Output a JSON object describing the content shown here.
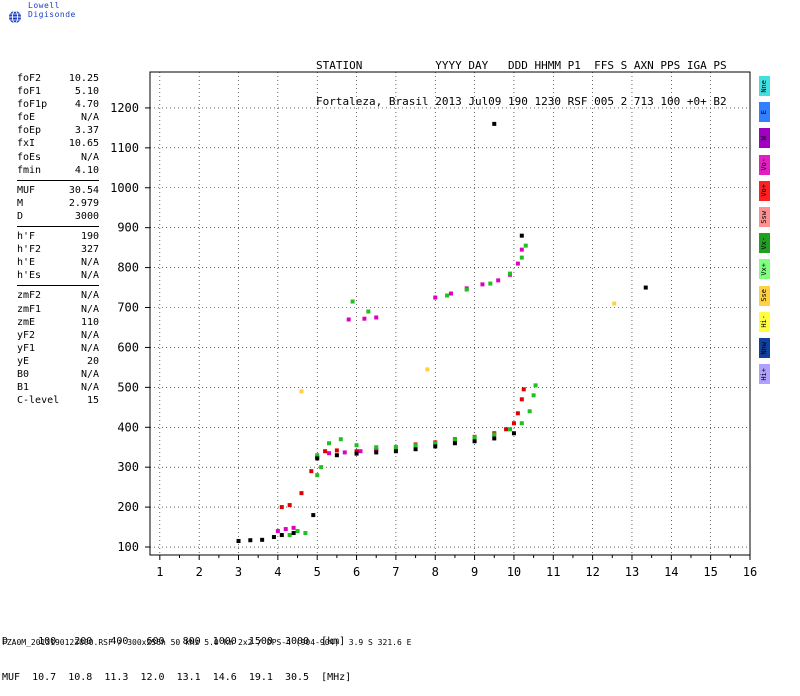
{
  "brand": {
    "name": "Lowell Digisonde",
    "logo_icon": "globe-icon"
  },
  "header": {
    "line1": "STATION           YYYY DAY   DDD HHMM P1  FFS S AXN PPS IGA PS",
    "line2": "Fortaleza, Brasil 2013 Jul09 190 1230 RSF 005 2 713 100 +0+ B2"
  },
  "params": {
    "group1": [
      {
        "k": "foF2",
        "v": "10.25"
      },
      {
        "k": "foF1",
        "v": "5.10"
      },
      {
        "k": "foF1p",
        "v": "4.70"
      },
      {
        "k": "foE",
        "v": "N/A"
      },
      {
        "k": "foEp",
        "v": "3.37"
      },
      {
        "k": "fxI",
        "v": "10.65"
      },
      {
        "k": "foEs",
        "v": "N/A"
      },
      {
        "k": "fmin",
        "v": "4.10"
      }
    ],
    "group2": [
      {
        "k": "MUF",
        "v": "30.54"
      },
      {
        "k": "M",
        "v": "2.979"
      },
      {
        "k": "D",
        "v": "3000"
      }
    ],
    "group3": [
      {
        "k": "h'F",
        "v": "190"
      },
      {
        "k": "h'F2",
        "v": "327"
      },
      {
        "k": "h'E",
        "v": "N/A"
      },
      {
        "k": "h'Es",
        "v": "N/A"
      }
    ],
    "group4": [
      {
        "k": "zmF2",
        "v": "N/A"
      },
      {
        "k": "zmF1",
        "v": "N/A"
      },
      {
        "k": "zmE",
        "v": "110"
      },
      {
        "k": "yF2",
        "v": "N/A"
      },
      {
        "k": "yF1",
        "v": "N/A"
      },
      {
        "k": "yE",
        "v": "20"
      },
      {
        "k": "B0",
        "v": "N/A"
      },
      {
        "k": "B1",
        "v": "N/A"
      },
      {
        "k": "C-level",
        "v": "15"
      }
    ]
  },
  "legend": [
    {
      "label": "Nne",
      "color": "#40e0e0"
    },
    {
      "label": "E",
      "color": "#3080ff"
    },
    {
      "label": "W",
      "color": "#a000c0"
    },
    {
      "label": "Vo-",
      "color": "#e020c0"
    },
    {
      "label": "Vo+",
      "color": "#ff2020"
    },
    {
      "label": "Ssw",
      "color": "#ff9090"
    },
    {
      "label": "Vx-",
      "color": "#20a020"
    },
    {
      "label": "Vx+",
      "color": "#80ff80"
    },
    {
      "label": "Sse",
      "color": "#ffd040"
    },
    {
      "label": "Hi-",
      "color": "#ffff40"
    },
    {
      "label": "Nnw",
      "color": "#1040a0"
    },
    {
      "label": "Hi+",
      "color": "#b0a0ff"
    }
  ],
  "footer": {
    "line1": "D     100   200   400   600   800  1000  1500  3000  [km]",
    "line2": "MUF  10.7  10.8  11.3  12.0  13.1  14.6  19.1  30.5  [MHz]",
    "filename": "FZA0M_2013190123000.RSF / 300x256h 50 kHz 5.0 km 2x2 / DPS-4 (904-904)  3.9 S 321.6 E"
  },
  "chart_data": {
    "type": "scatter",
    "xlim": [
      0.75,
      16
    ],
    "ylim": [
      80,
      1290
    ],
    "x_ticks": [
      "1",
      "2",
      "3",
      "4",
      "5",
      "6",
      "7",
      "8",
      "9",
      "10",
      "11",
      "12",
      "13",
      "14",
      "15",
      "16"
    ],
    "y_ticks": [
      "100",
      "200",
      "300",
      "400",
      "500",
      "600",
      "700",
      "800",
      "900",
      "1000",
      "1100",
      "1200"
    ],
    "grid": true,
    "series": [
      {
        "color": "#e00000",
        "points": [
          [
            4.1,
            200
          ],
          [
            4.3,
            205
          ],
          [
            4.6,
            235
          ],
          [
            4.85,
            290
          ],
          [
            5.0,
            325
          ],
          [
            5.2,
            340
          ],
          [
            5.5,
            342
          ],
          [
            6.0,
            340
          ],
          [
            6.5,
            343
          ],
          [
            7.0,
            350
          ],
          [
            7.5,
            357
          ],
          [
            8.0,
            362
          ],
          [
            8.5,
            370
          ],
          [
            9.0,
            376
          ],
          [
            9.5,
            385
          ],
          [
            9.8,
            395
          ],
          [
            10.0,
            410
          ],
          [
            10.1,
            435
          ],
          [
            10.2,
            470
          ],
          [
            10.25,
            495
          ]
        ]
      },
      {
        "color": "#e000c0",
        "points": [
          [
            5.3,
            335
          ],
          [
            5.7,
            337
          ],
          [
            6.1,
            340
          ],
          [
            6.5,
            345
          ],
          [
            4.0,
            140
          ],
          [
            4.2,
            145
          ],
          [
            4.4,
            148
          ],
          [
            5.8,
            670
          ],
          [
            6.2,
            672
          ],
          [
            6.5,
            675
          ],
          [
            8.0,
            725
          ],
          [
            8.4,
            735
          ],
          [
            8.8,
            748
          ],
          [
            9.2,
            758
          ],
          [
            9.6,
            768
          ],
          [
            9.9,
            782
          ],
          [
            10.1,
            810
          ],
          [
            10.2,
            845
          ]
        ]
      },
      {
        "color": "#20c020",
        "points": [
          [
            5.0,
            330
          ],
          [
            5.3,
            360
          ],
          [
            5.6,
            370
          ],
          [
            6.0,
            355
          ],
          [
            6.5,
            350
          ],
          [
            7.0,
            350
          ],
          [
            7.5,
            355
          ],
          [
            8.0,
            360
          ],
          [
            8.5,
            368
          ],
          [
            9.0,
            375
          ],
          [
            9.5,
            382
          ],
          [
            9.9,
            395
          ],
          [
            10.2,
            410
          ],
          [
            10.4,
            440
          ],
          [
            10.5,
            480
          ],
          [
            10.55,
            505
          ],
          [
            4.3,
            130
          ],
          [
            4.5,
            140
          ],
          [
            4.7,
            135
          ],
          [
            5.9,
            715
          ],
          [
            6.3,
            690
          ],
          [
            8.3,
            730
          ],
          [
            8.8,
            745
          ],
          [
            9.4,
            760
          ],
          [
            9.9,
            785
          ],
          [
            10.2,
            825
          ],
          [
            10.3,
            855
          ],
          [
            5.0,
            280
          ],
          [
            5.1,
            300
          ]
        ]
      },
      {
        "color": "#000000",
        "points": [
          [
            3.0,
            115
          ],
          [
            3.3,
            117
          ],
          [
            3.6,
            118
          ],
          [
            3.9,
            125
          ],
          [
            4.1,
            130
          ],
          [
            4.4,
            135
          ],
          [
            5.0,
            322
          ],
          [
            5.5,
            330
          ],
          [
            6.0,
            334
          ],
          [
            6.5,
            337
          ],
          [
            7.0,
            340
          ],
          [
            7.5,
            345
          ],
          [
            8.0,
            352
          ],
          [
            8.5,
            360
          ],
          [
            9.0,
            365
          ],
          [
            9.5,
            372
          ],
          [
            10.0,
            385
          ],
          [
            13.35,
            750
          ],
          [
            9.5,
            1160
          ],
          [
            4.9,
            180
          ],
          [
            10.2,
            880
          ]
        ]
      },
      {
        "color": "#ffd040",
        "points": [
          [
            12.55,
            710
          ],
          [
            4.6,
            490
          ],
          [
            7.8,
            545
          ]
        ]
      }
    ]
  }
}
